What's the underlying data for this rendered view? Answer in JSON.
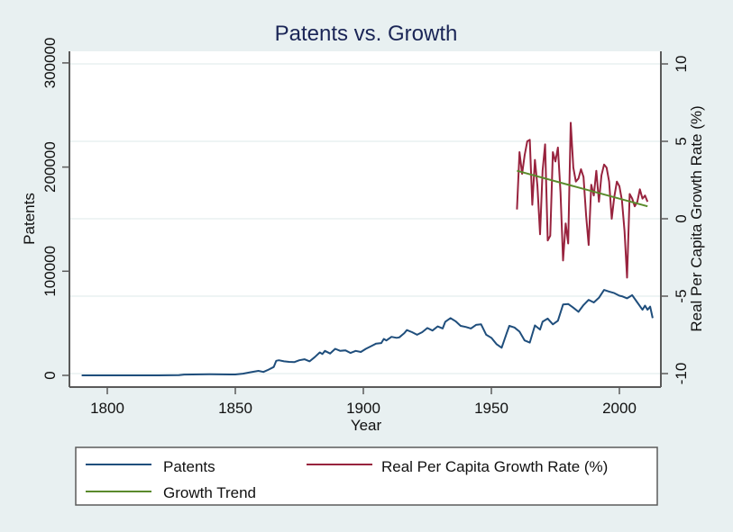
{
  "chart_data": {
    "type": "line",
    "title": "Patents vs. Growth",
    "xlabel": "Year",
    "ylabel": "Patents",
    "y2label": "Real Per Capita Growth Rate (%)",
    "xlim": [
      1785,
      2016
    ],
    "ylim": [
      -3000,
      320000
    ],
    "y2lim": [
      -11,
      10.8
    ],
    "xticks": [
      1800,
      1850,
      1900,
      1950,
      2000
    ],
    "yticks": [
      0,
      100000,
      200000,
      300000
    ],
    "y2ticks": [
      -10,
      -5,
      0,
      5,
      10
    ],
    "grid": "horizontal at right-axis ticks",
    "legend_position": "bottom",
    "colors": {
      "patents": "#1f4e7c",
      "growth": "#98233e",
      "trend": "#5a8a2b"
    },
    "series": [
      {
        "name": "Patents",
        "axis": "left",
        "x": [
          1790,
          1800,
          1810,
          1820,
          1828,
          1830,
          1840,
          1850,
          1853,
          1856,
          1859,
          1861,
          1863,
          1865,
          1866,
          1867,
          1869,
          1871,
          1873,
          1875,
          1877,
          1879,
          1881,
          1883,
          1884,
          1885,
          1887,
          1889,
          1891,
          1893,
          1895,
          1897,
          1899,
          1901,
          1903,
          1905,
          1907,
          1908,
          1909,
          1911,
          1913,
          1914,
          1916,
          1917,
          1919,
          1921,
          1923,
          1925,
          1927,
          1929,
          1931,
          1932,
          1934,
          1936,
          1938,
          1940,
          1942,
          1944,
          1946,
          1948,
          1950,
          1952,
          1954,
          1956,
          1957,
          1959,
          1961,
          1963,
          1965,
          1967,
          1969,
          1970,
          1972,
          1974,
          1976,
          1978,
          1980,
          1982,
          1984,
          1986,
          1988,
          1990,
          1992,
          1994,
          1996,
          1998,
          2000,
          2001,
          2003,
          2004,
          2005,
          2007,
          2009,
          2010,
          2011,
          2012,
          2013
        ],
        "values": [
          0,
          0,
          0,
          0,
          200,
          800,
          1000,
          900,
          1600,
          3000,
          4300,
          3300,
          5500,
          8000,
          14000,
          14500,
          13500,
          13000,
          12700,
          14500,
          15500,
          13500,
          17500,
          22000,
          20500,
          23500,
          21000,
          25500,
          23500,
          24000,
          21500,
          23500,
          22500,
          25500,
          28000,
          30500,
          31000,
          35000,
          33500,
          37000,
          36000,
          36500,
          40500,
          43500,
          41500,
          39000,
          41500,
          45500,
          43000,
          47000,
          45000,
          51500,
          55000,
          52000,
          47500,
          46500,
          45000,
          48500,
          49000,
          39000,
          36000,
          30000,
          26500,
          40500,
          47500,
          46000,
          42000,
          33500,
          31500,
          48000,
          44000,
          51500,
          54500,
          49000,
          52500,
          68000,
          68500,
          65000,
          61000,
          67500,
          72500,
          70000,
          74500,
          82000,
          80500,
          79000,
          76500,
          76000,
          74000,
          75500,
          77000,
          70000,
          63000,
          67000,
          63000,
          66000,
          55000
        ]
      },
      {
        "name": "Real Per Capita Growth Rate (%)",
        "axis": "right",
        "x": [
          1960,
          1961,
          1962,
          1963,
          1964,
          1965,
          1966,
          1967,
          1968,
          1969,
          1970,
          1971,
          1972,
          1973,
          1974,
          1975,
          1976,
          1977,
          1978,
          1979,
          1980,
          1981,
          1982,
          1983,
          1984,
          1985,
          1986,
          1987,
          1988,
          1989,
          1990,
          1991,
          1992,
          1993,
          1994,
          1995,
          1996,
          1997,
          1998,
          1999,
          2000,
          2001,
          2002,
          2003,
          2004,
          2005,
          2006,
          2007,
          2008,
          2009,
          2010,
          2011
        ],
        "values": [
          0.6,
          4.3,
          2.9,
          4.1,
          5.0,
          5.1,
          0.9,
          3.8,
          2.1,
          -1.0,
          3.1,
          4.8,
          -1.4,
          -1.1,
          4.3,
          3.7,
          4.6,
          1.7,
          -2.7,
          -0.3,
          -1.6,
          6.2,
          3.3,
          2.4,
          2.6,
          3.2,
          2.7,
          0.2,
          -1.7,
          2.2,
          1.5,
          3.1,
          1.1,
          2.8,
          3.5,
          3.3,
          2.4,
          0.0,
          1.4,
          2.4,
          2.1,
          1.2,
          -0.8,
          -3.8,
          1.6,
          1.3,
          0.8,
          1.1,
          1.9,
          1.3,
          1.5,
          1.1
        ]
      },
      {
        "name": "Growth Trend",
        "axis": "right",
        "x": [
          1960,
          2011
        ],
        "values": [
          3.1,
          0.8
        ]
      }
    ],
    "legend": [
      "Patents",
      "Real Per Capita Growth Rate (%)",
      "Growth Trend"
    ]
  }
}
